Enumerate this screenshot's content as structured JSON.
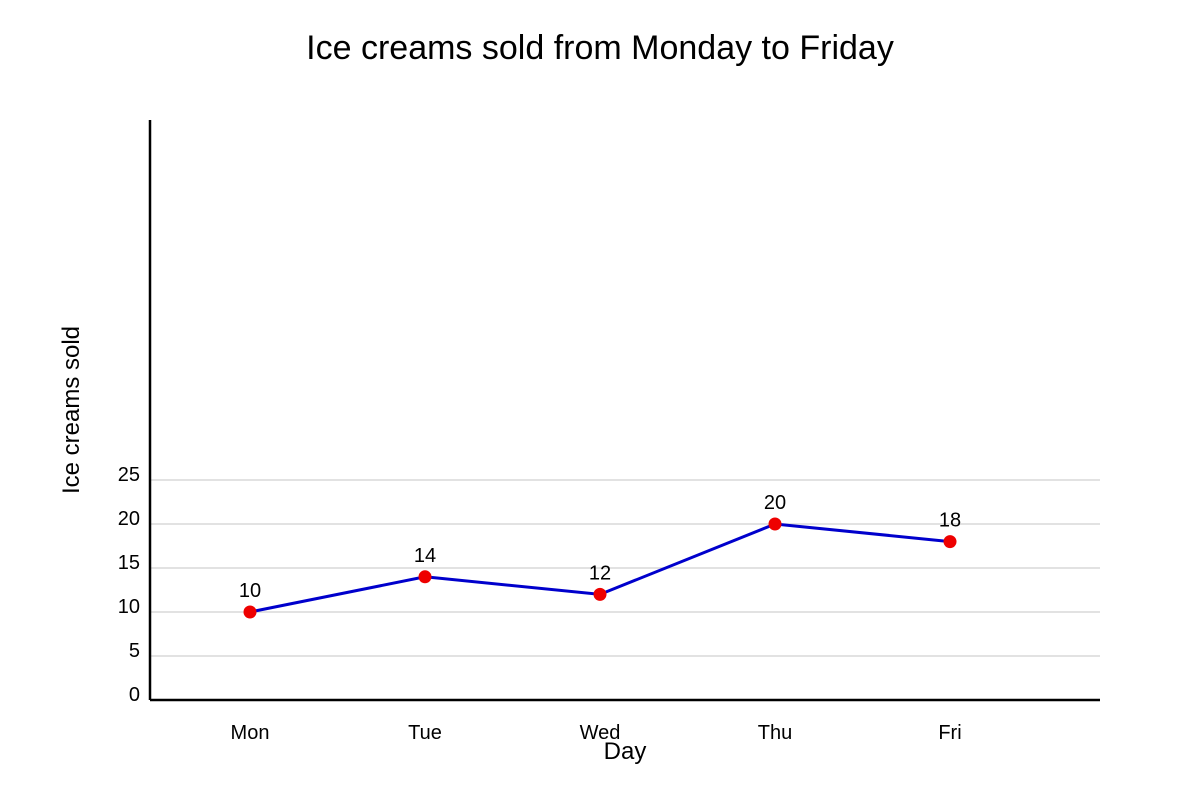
{
  "chart_data": {
    "type": "line",
    "title": "Ice creams sold from Monday to Friday",
    "xlabel": "Day",
    "ylabel": "Ice creams sold",
    "categories": [
      "Mon",
      "Tue",
      "Wed",
      "Thu",
      "Fri"
    ],
    "series": [
      {
        "values": [
          10,
          14,
          12,
          20,
          18
        ],
        "color": "#0000cc",
        "marker_color": "#ee0000"
      }
    ],
    "yticks": [
      0,
      5,
      10,
      15,
      20,
      25
    ],
    "ylim": [
      0,
      25
    ],
    "grid": true
  }
}
